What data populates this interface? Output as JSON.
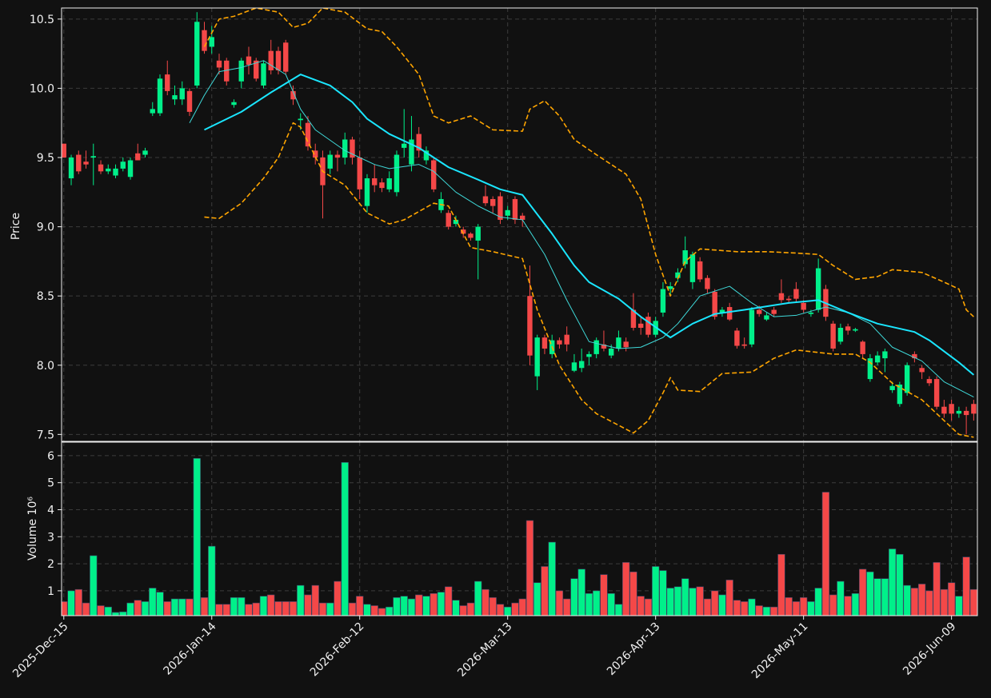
{
  "chart_data": [
    {
      "type": "candlestick",
      "ylabel": "Price",
      "xlim": [
        -0.3,
        123.5
      ],
      "ylim": [
        7.45,
        10.58
      ],
      "yticks": [
        7.5,
        {
          "value": 8.0,
          "label": "8.0"
        },
        8.5,
        {
          "value": 9.0,
          "label": "9.0"
        },
        9.5,
        {
          "value": 10.0,
          "label": "10.0"
        },
        10.5
      ],
      "grid": true,
      "up_color": "#00f08a",
      "down_color": "#f44848",
      "open": [
        9.6,
        9.35,
        9.52,
        9.47,
        9.5,
        9.45,
        9.4,
        9.37,
        9.42,
        9.36,
        9.53,
        9.52,
        9.82,
        9.82,
        10.1,
        9.92,
        9.92,
        9.98,
        10.02,
        10.42,
        10.3,
        10.2,
        10.2,
        9.88,
        10.05,
        10.23,
        10.2,
        10.02,
        10.27,
        10.27,
        10.33,
        9.98,
        9.77,
        9.75,
        9.55,
        9.5,
        9.42,
        9.52,
        9.5,
        9.63,
        9.5,
        9.15,
        9.35,
        9.32,
        9.27,
        9.25,
        9.57,
        9.45,
        9.67,
        9.48,
        9.48,
        9.12,
        9.1,
        9.02,
        8.98,
        8.95,
        8.9,
        9.22,
        9.2,
        9.22,
        9.08,
        9.2,
        9.08,
        8.5,
        7.92,
        8.2,
        8.08,
        8.18,
        8.22,
        7.96,
        7.98,
        8.06,
        8.08,
        8.15,
        8.07,
        8.12,
        8.17,
        8.4,
        8.3,
        8.35,
        8.22,
        8.38,
        8.55,
        8.63,
        8.73,
        8.6,
        8.75,
        8.63,
        8.53,
        8.38,
        8.42,
        8.25,
        8.15,
        8.15,
        8.4,
        8.33,
        8.4,
        8.52,
        8.48,
        8.55,
        8.45,
        8.37,
        8.4,
        8.55,
        8.3,
        8.17,
        8.28,
        8.25,
        8.17,
        7.9,
        8.02,
        8.05,
        7.82,
        7.72,
        7.8,
        8.08,
        7.98,
        7.9,
        7.9,
        7.7,
        7.72,
        7.65,
        7.67,
        7.72
      ],
      "high": [
        9.6,
        9.52,
        9.55,
        9.55,
        9.6,
        9.48,
        9.45,
        9.45,
        9.5,
        9.5,
        9.6,
        9.57,
        9.9,
        10.1,
        10.2,
        10.02,
        10.05,
        10.0,
        10.55,
        10.48,
        10.45,
        10.25,
        10.22,
        9.92,
        10.22,
        10.3,
        10.22,
        10.2,
        10.35,
        10.3,
        10.35,
        10.02,
        9.82,
        9.8,
        9.6,
        9.55,
        9.55,
        9.55,
        9.68,
        9.65,
        9.55,
        9.38,
        9.45,
        9.35,
        9.4,
        9.55,
        9.85,
        9.8,
        9.72,
        9.58,
        9.5,
        9.25,
        9.12,
        9.08,
        9.0,
        8.96,
        9.02,
        9.3,
        9.22,
        9.25,
        9.15,
        9.22,
        9.1,
        8.72,
        8.22,
        8.22,
        8.22,
        8.2,
        8.28,
        8.08,
        8.12,
        8.1,
        8.2,
        8.25,
        8.15,
        8.25,
        8.2,
        8.52,
        8.35,
        8.38,
        8.35,
        8.6,
        8.6,
        8.7,
        8.93,
        8.82,
        8.78,
        8.65,
        8.55,
        8.42,
        8.45,
        8.27,
        8.2,
        8.42,
        8.43,
        8.38,
        8.42,
        8.62,
        8.5,
        8.6,
        8.47,
        8.4,
        8.77,
        8.58,
        8.32,
        8.3,
        8.3,
        8.27,
        8.18,
        8.08,
        8.1,
        8.12,
        7.88,
        7.88,
        8.02,
        8.1,
        8.0,
        7.92,
        7.92,
        7.75,
        7.75,
        7.7,
        7.7,
        7.75
      ],
      "low": [
        9.5,
        9.3,
        9.38,
        9.42,
        9.3,
        9.38,
        9.38,
        9.35,
        9.4,
        9.34,
        9.48,
        9.5,
        9.8,
        9.8,
        9.95,
        9.88,
        9.88,
        9.8,
        10.0,
        10.25,
        10.25,
        10.1,
        10.02,
        9.86,
        10.0,
        10.1,
        10.05,
        10.0,
        10.1,
        10.1,
        10.1,
        9.88,
        9.7,
        9.55,
        9.45,
        9.06,
        9.38,
        9.4,
        9.45,
        9.45,
        9.2,
        9.1,
        9.25,
        9.25,
        9.25,
        9.22,
        9.5,
        9.4,
        9.5,
        9.45,
        9.25,
        9.1,
        8.98,
        9.0,
        8.92,
        8.9,
        8.62,
        9.15,
        9.1,
        9.02,
        9.05,
        9.02,
        9.0,
        8.0,
        7.82,
        8.08,
        8.05,
        8.12,
        8.1,
        7.95,
        7.95,
        8.0,
        8.05,
        8.1,
        8.05,
        8.1,
        8.1,
        8.25,
        8.22,
        8.2,
        8.2,
        8.35,
        8.5,
        8.6,
        8.7,
        8.55,
        8.6,
        8.52,
        8.33,
        8.35,
        8.32,
        8.12,
        8.12,
        8.13,
        8.35,
        8.32,
        8.35,
        8.45,
        8.45,
        8.45,
        8.38,
        8.35,
        8.38,
        8.32,
        8.1,
        8.15,
        8.22,
        8.24,
        8.05,
        7.88,
        8.0,
        7.95,
        7.8,
        7.7,
        7.78,
        8.02,
        7.9,
        7.85,
        7.68,
        7.62,
        7.6,
        7.62,
        7.5,
        7.6
      ],
      "close": [
        9.5,
        9.5,
        9.4,
        9.45,
        9.51,
        9.4,
        9.42,
        9.42,
        9.47,
        9.48,
        9.48,
        9.55,
        9.85,
        10.07,
        9.98,
        9.95,
        10.0,
        9.83,
        10.48,
        10.27,
        10.37,
        10.15,
        10.05,
        9.9,
        10.2,
        10.17,
        10.07,
        10.18,
        10.13,
        10.13,
        10.12,
        9.92,
        9.78,
        9.58,
        9.5,
        9.3,
        9.52,
        9.5,
        9.63,
        9.5,
        9.27,
        9.35,
        9.3,
        9.28,
        9.35,
        9.52,
        9.6,
        9.63,
        9.55,
        9.55,
        9.27,
        9.2,
        9.0,
        9.05,
        8.95,
        8.92,
        9.0,
        9.17,
        9.15,
        9.05,
        9.12,
        9.05,
        9.05,
        8.07,
        8.2,
        8.12,
        8.18,
        8.15,
        8.15,
        8.02,
        8.03,
        8.08,
        8.18,
        8.12,
        8.12,
        8.2,
        8.13,
        8.27,
        8.27,
        8.22,
        8.32,
        8.55,
        8.57,
        8.67,
        8.83,
        8.8,
        8.62,
        8.55,
        8.35,
        8.4,
        8.33,
        8.14,
        8.14,
        8.4,
        8.37,
        8.36,
        8.37,
        8.47,
        8.47,
        8.48,
        8.4,
        8.38,
        8.7,
        8.35,
        8.12,
        8.27,
        8.25,
        8.26,
        8.08,
        8.05,
        8.07,
        8.1,
        7.85,
        7.86,
        8.0,
        8.05,
        7.95,
        7.87,
        7.7,
        7.65,
        7.65,
        7.67,
        7.64,
        7.65
      ],
      "series": [
        {
          "color": "#3fd9d9",
          "width": 1,
          "style": "solid",
          "x": [
            17,
            19,
            21,
            24,
            27,
            30,
            32,
            34,
            38,
            42,
            44,
            48,
            50,
            53,
            56,
            59,
            62,
            65,
            68,
            71,
            75,
            78,
            81,
            83,
            86,
            90,
            93,
            96,
            99,
            103,
            106,
            109,
            112,
            116,
            119,
            123
          ],
          "values": [
            9.75,
            9.95,
            10.12,
            10.15,
            10.2,
            10.1,
            9.85,
            9.7,
            9.55,
            9.45,
            9.42,
            9.45,
            9.4,
            9.25,
            9.15,
            9.07,
            9.05,
            8.8,
            8.47,
            8.17,
            8.12,
            8.13,
            8.2,
            8.3,
            8.5,
            8.57,
            8.45,
            8.35,
            8.36,
            8.42,
            8.38,
            8.3,
            8.13,
            8.03,
            7.88,
            7.77
          ]
        },
        {
          "color": "#1ae6ff",
          "width": 2,
          "style": "solid",
          "x": [
            19,
            24,
            28,
            32,
            36,
            39,
            41,
            44,
            48,
            52,
            56,
            59,
            62,
            66,
            69,
            71,
            75,
            78,
            82,
            85,
            88,
            92,
            98,
            102,
            106,
            110,
            115,
            117,
            121,
            123
          ],
          "values": [
            9.7,
            9.83,
            9.97,
            10.1,
            10.02,
            9.9,
            9.78,
            9.67,
            9.57,
            9.43,
            9.34,
            9.27,
            9.23,
            8.95,
            8.72,
            8.6,
            8.48,
            8.35,
            8.2,
            8.3,
            8.37,
            8.4,
            8.45,
            8.47,
            8.38,
            8.3,
            8.24,
            8.18,
            8.02,
            7.93
          ]
        },
        {
          "color": "#ffa500",
          "width": 1.6,
          "style": "dashed",
          "x": [
            19,
            21,
            23,
            26,
            29,
            31,
            33,
            35,
            38,
            41,
            43,
            45,
            48,
            50,
            52,
            55,
            58,
            62,
            63,
            65,
            67,
            69,
            72,
            76,
            78,
            80,
            82,
            84,
            86,
            91,
            95,
            99,
            102,
            104,
            107,
            110,
            112,
            116,
            119,
            121,
            122,
            123
          ],
          "values": [
            10.3,
            10.5,
            10.52,
            10.58,
            10.55,
            10.44,
            10.47,
            10.58,
            10.55,
            10.43,
            10.41,
            10.3,
            10.1,
            9.8,
            9.75,
            9.8,
            9.7,
            9.69,
            9.85,
            9.91,
            9.8,
            9.63,
            9.52,
            9.38,
            9.2,
            8.8,
            8.5,
            8.75,
            8.84,
            8.82,
            8.82,
            8.81,
            8.8,
            8.72,
            8.62,
            8.64,
            8.69,
            8.67,
            8.6,
            8.55,
            8.4,
            8.35
          ]
        },
        {
          "color": "#ffa500",
          "width": 1.6,
          "style": "dashed",
          "x": [
            19,
            21,
            24,
            27,
            29,
            31,
            32,
            35,
            38,
            41,
            44,
            46,
            50,
            52,
            55,
            58,
            62,
            64,
            67,
            70,
            72,
            77,
            79,
            81,
            82,
            83,
            86,
            89,
            93,
            96,
            99,
            104,
            107,
            109,
            112,
            116,
            119,
            121,
            123
          ],
          "values": [
            9.07,
            9.06,
            9.17,
            9.35,
            9.5,
            9.75,
            9.72,
            9.4,
            9.3,
            9.1,
            9.02,
            9.05,
            9.17,
            9.15,
            8.85,
            8.82,
            8.77,
            8.4,
            8.0,
            7.75,
            7.65,
            7.51,
            7.6,
            7.8,
            7.91,
            7.82,
            7.81,
            7.94,
            7.95,
            8.05,
            8.11,
            8.08,
            8.08,
            8.02,
            7.87,
            7.75,
            7.6,
            7.5,
            7.48
          ]
        }
      ]
    },
    {
      "type": "bar",
      "ylabel": "Volume  10⁶",
      "xlim": [
        -0.3,
        123.5
      ],
      "ylim": [
        0.08,
        6.5
      ],
      "yticks": [
        1,
        2,
        3,
        4,
        5,
        6
      ],
      "grid": true,
      "categories": [
        "2025-Dec-15",
        null,
        null,
        null,
        null,
        null,
        null,
        null,
        null,
        null,
        null,
        null,
        null,
        null,
        null,
        null,
        null,
        null,
        null,
        null,
        "2026-Jan-14",
        null,
        null,
        null,
        null,
        null,
        null,
        null,
        null,
        null,
        null,
        null,
        null,
        null,
        null,
        null,
        null,
        null,
        null,
        null,
        "2026-Feb-12",
        null,
        null,
        null,
        null,
        null,
        null,
        null,
        null,
        null,
        null,
        null,
        null,
        null,
        null,
        null,
        null,
        null,
        null,
        null,
        "2026-Mar-13",
        null,
        null,
        null,
        null,
        null,
        null,
        null,
        null,
        null,
        null,
        null,
        null,
        null,
        null,
        null,
        null,
        null,
        null,
        null,
        "2026-Apr-13",
        null,
        null,
        null,
        null,
        null,
        null,
        null,
        null,
        null,
        null,
        null,
        null,
        null,
        null,
        null,
        null,
        null,
        null,
        null,
        "2026-May-11",
        null,
        null,
        null,
        null,
        null,
        null,
        null,
        null,
        null,
        null,
        null,
        null,
        null,
        null,
        null,
        null,
        null,
        null,
        null,
        "2026-Jun-09",
        null,
        null,
        null
      ],
      "values": [
        0.6,
        1.0,
        1.05,
        0.55,
        2.3,
        0.45,
        0.4,
        0.2,
        0.22,
        0.55,
        0.65,
        0.6,
        1.1,
        0.95,
        0.6,
        0.7,
        0.7,
        0.7,
        5.9,
        0.75,
        2.65,
        0.5,
        0.5,
        0.75,
        0.75,
        0.5,
        0.55,
        0.8,
        0.85,
        0.6,
        0.6,
        0.6,
        1.2,
        0.85,
        1.2,
        0.55,
        0.55,
        1.35,
        5.75,
        0.55,
        0.8,
        0.5,
        0.45,
        0.35,
        0.4,
        0.75,
        0.8,
        0.7,
        0.85,
        0.8,
        0.9,
        0.95,
        1.15,
        0.65,
        0.45,
        0.55,
        1.35,
        1.05,
        0.75,
        0.5,
        0.4,
        0.55,
        0.7,
        3.6,
        1.3,
        1.9,
        2.8,
        1.0,
        0.7,
        1.45,
        1.8,
        0.9,
        1.0,
        1.6,
        0.9,
        0.5,
        2.05,
        1.7,
        0.8,
        0.7,
        1.9,
        1.75,
        1.1,
        1.15,
        1.45,
        1.1,
        1.15,
        0.7,
        1.0,
        0.85,
        1.4,
        0.65,
        0.6,
        0.7,
        0.45,
        0.4,
        0.4,
        2.35,
        0.75,
        0.6,
        0.75,
        0.6,
        1.1,
        4.65,
        0.85,
        1.35,
        0.8,
        0.9,
        1.8,
        1.7,
        1.45,
        1.45,
        2.55,
        2.35,
        1.2,
        1.1,
        1.25,
        1.0,
        2.05,
        1.05,
        1.3,
        0.8,
        2.25,
        1.05
      ]
    }
  ]
}
